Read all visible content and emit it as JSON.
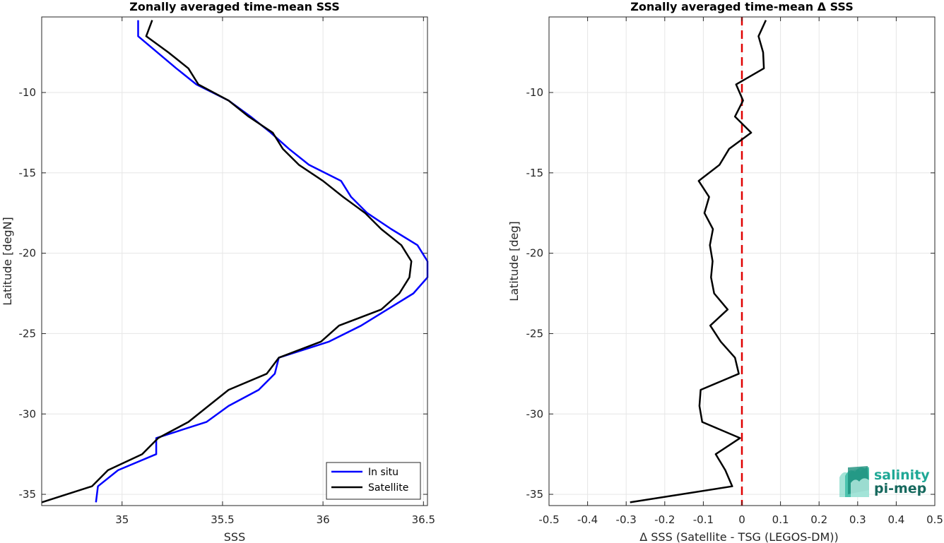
{
  "colors": {
    "insitu": "#0000ff",
    "satellite": "#000000",
    "zero_line": "#e00000",
    "grid": "#e6e6e6",
    "logo_top": "#1fa896",
    "logo_bottom": "#17695e"
  },
  "logo": {
    "line1": "salinity",
    "line2": "pi-mep",
    "icon": "salinity-wave-icon"
  },
  "chart_data": [
    {
      "type": "line",
      "title": "Zonally averaged time-mean SSS",
      "xlabel": "SSS",
      "ylabel": "Latitude [degN]",
      "xlim": [
        34.6,
        36.52
      ],
      "ylim": [
        -35.7,
        -5.3
      ],
      "xticks": [
        35,
        35.5,
        36,
        36.5
      ],
      "xtick_labels": [
        "35",
        "35.5",
        "36",
        "36.5"
      ],
      "yticks": [
        -35,
        -30,
        -25,
        -20,
        -15,
        -10
      ],
      "ytick_labels": [
        "-35",
        "-30",
        "-25",
        "-20",
        "-15",
        "-10"
      ],
      "grid": true,
      "legend_position": "bottom-right",
      "series": [
        {
          "name": "In situ",
          "color_key": "insitu",
          "points": [
            [
              35.08,
              -5.5
            ],
            [
              35.08,
              -6.5
            ],
            [
              35.27,
              -8.5
            ],
            [
              35.37,
              -9.5
            ],
            [
              35.53,
              -10.5
            ],
            [
              35.64,
              -11.5
            ],
            [
              35.74,
              -12.5
            ],
            [
              35.83,
              -13.5
            ],
            [
              35.93,
              -14.5
            ],
            [
              36.09,
              -15.5
            ],
            [
              36.14,
              -16.5
            ],
            [
              36.22,
              -17.5
            ],
            [
              36.34,
              -18.5
            ],
            [
              36.47,
              -19.5
            ],
            [
              36.52,
              -20.5
            ],
            [
              36.52,
              -21.5
            ],
            [
              36.45,
              -22.5
            ],
            [
              36.32,
              -23.5
            ],
            [
              36.19,
              -24.5
            ],
            [
              36.03,
              -25.5
            ],
            [
              35.78,
              -26.5
            ],
            [
              35.76,
              -27.5
            ],
            [
              35.68,
              -28.5
            ],
            [
              35.53,
              -29.5
            ],
            [
              35.42,
              -30.5
            ],
            [
              35.17,
              -31.5
            ],
            [
              35.17,
              -32.5
            ],
            [
              34.98,
              -33.5
            ],
            [
              34.88,
              -34.5
            ],
            [
              34.87,
              -35.5
            ]
          ]
        },
        {
          "name": "Satellite",
          "color_key": "satellite",
          "points": [
            [
              35.15,
              -5.5
            ],
            [
              35.12,
              -6.5
            ],
            [
              35.23,
              -7.5
            ],
            [
              35.33,
              -8.5
            ],
            [
              35.38,
              -9.5
            ],
            [
              35.53,
              -10.5
            ],
            [
              35.63,
              -11.5
            ],
            [
              35.75,
              -12.5
            ],
            [
              35.8,
              -13.5
            ],
            [
              35.88,
              -14.5
            ],
            [
              36.0,
              -15.5
            ],
            [
              36.1,
              -16.5
            ],
            [
              36.21,
              -17.5
            ],
            [
              36.29,
              -18.5
            ],
            [
              36.39,
              -19.5
            ],
            [
              36.44,
              -20.5
            ],
            [
              36.43,
              -21.5
            ],
            [
              36.38,
              -22.5
            ],
            [
              36.29,
              -23.5
            ],
            [
              36.08,
              -24.5
            ],
            [
              35.99,
              -25.5
            ],
            [
              35.78,
              -26.5
            ],
            [
              35.72,
              -27.5
            ],
            [
              35.53,
              -28.5
            ],
            [
              35.43,
              -29.5
            ],
            [
              35.33,
              -30.5
            ],
            [
              35.18,
              -31.5
            ],
            [
              35.1,
              -32.5
            ],
            [
              34.93,
              -33.5
            ],
            [
              34.85,
              -34.5
            ],
            [
              34.6,
              -35.5
            ]
          ]
        }
      ]
    },
    {
      "type": "line",
      "title": "Zonally averaged time-mean Δ SSS",
      "xlabel": "Δ SSS (Satellite - TSG (LEGOS-DM))",
      "ylabel": "Latitude [deg]",
      "xlim": [
        -0.5,
        0.5
      ],
      "ylim": [
        -35.7,
        -5.3
      ],
      "xticks": [
        -0.5,
        -0.4,
        -0.3,
        -0.2,
        -0.1,
        0,
        0.1,
        0.2,
        0.3,
        0.4,
        0.5
      ],
      "xtick_labels": [
        "-0.5",
        "-0.4",
        "-0.3",
        "-0.2",
        "-0.1",
        "0",
        "0.1",
        "0.2",
        "0.3",
        "0.4",
        "0.5"
      ],
      "yticks": [
        -35,
        -30,
        -25,
        -20,
        -15,
        -10
      ],
      "ytick_labels": [
        "-35",
        "-30",
        "-25",
        "-20",
        "-15",
        "-10"
      ],
      "grid": true,
      "reference_line_x": 0,
      "series": [
        {
          "color_key": "satellite",
          "points": [
            [
              0.062,
              -5.5
            ],
            [
              0.043,
              -6.5
            ],
            [
              0.055,
              -7.5
            ],
            [
              0.057,
              -8.5
            ],
            [
              -0.015,
              -9.5
            ],
            [
              0.003,
              -10.5
            ],
            [
              -0.018,
              -11.5
            ],
            [
              0.024,
              -12.5
            ],
            [
              -0.033,
              -13.5
            ],
            [
              -0.058,
              -14.5
            ],
            [
              -0.112,
              -15.5
            ],
            [
              -0.085,
              -16.5
            ],
            [
              -0.097,
              -17.5
            ],
            [
              -0.075,
              -18.5
            ],
            [
              -0.083,
              -19.5
            ],
            [
              -0.076,
              -20.5
            ],
            [
              -0.08,
              -21.5
            ],
            [
              -0.072,
              -22.5
            ],
            [
              -0.037,
              -23.5
            ],
            [
              -0.082,
              -24.5
            ],
            [
              -0.055,
              -25.5
            ],
            [
              -0.018,
              -26.5
            ],
            [
              -0.008,
              -27.5
            ],
            [
              -0.107,
              -28.5
            ],
            [
              -0.11,
              -29.5
            ],
            [
              -0.103,
              -30.5
            ],
            [
              -0.005,
              -31.5
            ],
            [
              -0.068,
              -32.5
            ],
            [
              -0.043,
              -33.5
            ],
            [
              -0.025,
              -34.5
            ],
            [
              -0.29,
              -35.5
            ]
          ]
        }
      ]
    }
  ]
}
